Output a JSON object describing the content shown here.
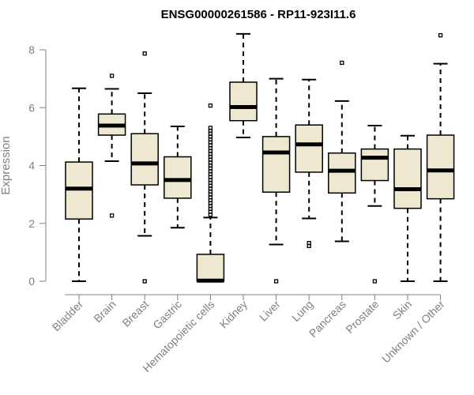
{
  "chart_data": {
    "type": "boxplot",
    "title": "ENSG00000261586 - RP11-923I11.6",
    "ylabel": "Expression",
    "ylim": [
      0,
      8.6
    ],
    "yticks": [
      0,
      2,
      4,
      6,
      8
    ],
    "categories": [
      "Bladder",
      "Brain",
      "Breast",
      "Gastric",
      "Hematopoietic cells",
      "Kidney",
      "Liver",
      "Lung",
      "Pancreas",
      "Prostate",
      "Skin",
      "Unknown / Other"
    ],
    "boxes": [
      {
        "category": "Bladder",
        "whisker_low": 0.0,
        "q1": 2.15,
        "median": 3.2,
        "q3": 4.12,
        "whisker_high": 6.67,
        "outliers": []
      },
      {
        "category": "Brain",
        "whisker_low": 4.15,
        "q1": 5.05,
        "median": 5.38,
        "q3": 5.78,
        "whisker_high": 6.65,
        "outliers": [
          2.27,
          7.1
        ]
      },
      {
        "category": "Breast",
        "whisker_low": 1.57,
        "q1": 3.33,
        "median": 4.07,
        "q3": 5.1,
        "whisker_high": 6.5,
        "outliers": [
          0.0,
          7.87
        ]
      },
      {
        "category": "Gastric",
        "whisker_low": 1.85,
        "q1": 2.87,
        "median": 3.5,
        "q3": 4.3,
        "whisker_high": 5.35,
        "outliers": []
      },
      {
        "category": "Hematopoietic cells",
        "whisker_low": 0.0,
        "q1": 0.0,
        "median": 0.02,
        "q3": 0.93,
        "whisker_high": 2.2,
        "outliers": [
          2.3,
          2.4,
          2.5,
          2.6,
          2.7,
          2.8,
          2.9,
          3.0,
          3.1,
          3.2,
          3.3,
          3.4,
          3.5,
          3.6,
          3.7,
          3.8,
          3.9,
          4.0,
          4.1,
          4.2,
          4.3,
          4.4,
          4.5,
          4.6,
          4.7,
          4.8,
          4.9,
          5.0,
          5.1,
          5.2,
          5.3,
          6.07
        ]
      },
      {
        "category": "Kidney",
        "whisker_low": 4.97,
        "q1": 5.55,
        "median": 6.02,
        "q3": 6.88,
        "whisker_high": 8.55,
        "outliers": []
      },
      {
        "category": "Liver",
        "whisker_low": 1.27,
        "q1": 3.08,
        "median": 4.45,
        "q3": 5.0,
        "whisker_high": 7.0,
        "outliers": [
          0.0
        ]
      },
      {
        "category": "Lung",
        "whisker_low": 2.17,
        "q1": 3.77,
        "median": 4.73,
        "q3": 5.4,
        "whisker_high": 6.97,
        "outliers": [
          1.22,
          1.32
        ]
      },
      {
        "category": "Pancreas",
        "whisker_low": 1.38,
        "q1": 3.05,
        "median": 3.82,
        "q3": 4.43,
        "whisker_high": 6.23,
        "outliers": [
          7.55
        ]
      },
      {
        "category": "Prostate",
        "whisker_low": 2.6,
        "q1": 3.48,
        "median": 4.27,
        "q3": 4.57,
        "whisker_high": 5.38,
        "outliers": [
          0.0
        ]
      },
      {
        "category": "Skin",
        "whisker_low": 0.0,
        "q1": 2.52,
        "median": 3.18,
        "q3": 4.57,
        "whisker_high": 5.03,
        "outliers": []
      },
      {
        "category": "Unknown / Other",
        "whisker_low": 0.0,
        "q1": 2.85,
        "median": 3.83,
        "q3": 5.05,
        "whisker_high": 7.52,
        "outliers": [
          8.5
        ]
      }
    ],
    "grid": false,
    "colors": {
      "box_fill": "#eee8d0",
      "axis": "#808080"
    }
  }
}
